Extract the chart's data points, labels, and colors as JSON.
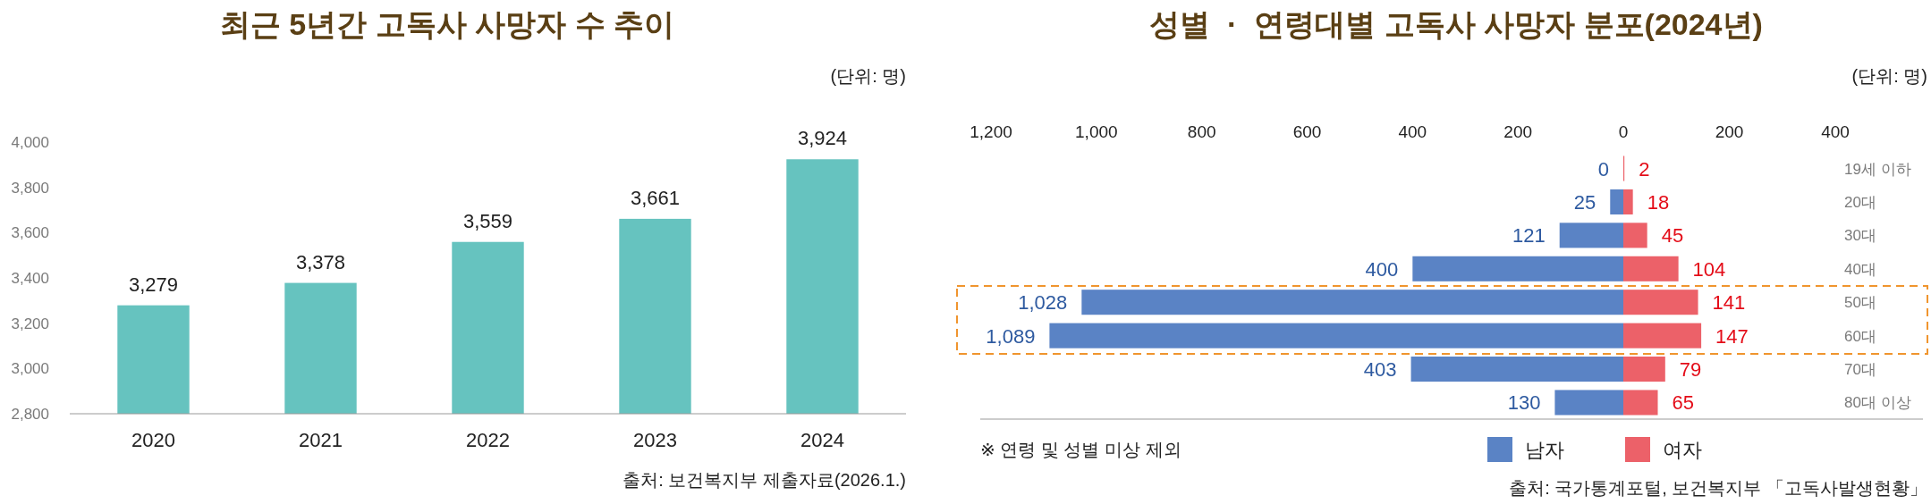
{
  "chart_data": [
    {
      "type": "bar",
      "title": "최근 5년간 고독사 사망자 수 추이",
      "categories": [
        "2020",
        "2021",
        "2022",
        "2023",
        "2024"
      ],
      "values": [
        3279,
        3378,
        3559,
        3661,
        3924
      ],
      "value_labels": [
        "3,279",
        "3,378",
        "3,559",
        "3,661",
        "3,924"
      ],
      "color": "#66c3bf",
      "ylim": [
        2800,
        4000
      ],
      "yticks": [
        {
          "value": 2800,
          "label": "2,800"
        },
        {
          "value": 3000,
          "label": "3,000"
        },
        {
          "value": 3200,
          "label": "3,200"
        },
        {
          "value": 3400,
          "label": "3,400"
        },
        {
          "value": 3600,
          "label": "3,600"
        },
        {
          "value": 3800,
          "label": "3,800"
        },
        {
          "value": 4000,
          "label": "4,000"
        }
      ],
      "annotations": [
        "(단위: 명)",
        "출처: 보건복지부 제출자료(2026.1.)"
      ]
    },
    {
      "type": "bar",
      "orientation": "horizontal",
      "title": "성별  ·  연령대별 고독사 사망자 분포(2024년)",
      "categories": [
        "19세 이하",
        "20대",
        "30대",
        "40대",
        "50대",
        "60대",
        "70대",
        "80대 이상"
      ],
      "series": [
        {
          "name": "남자",
          "color": "#5a83c5",
          "values": [
            0,
            25,
            121,
            400,
            1028,
            1089,
            403,
            130
          ],
          "value_labels": [
            "0",
            "25",
            "121",
            "400",
            "1,028",
            "1,089",
            "403",
            "130"
          ]
        }
      ],
      "xlim": [
        1200,
        0
      ],
      "xticks": [
        {
          "value": 1200,
          "label": "1,200"
        },
        {
          "value": 1000,
          "label": "1,000"
        },
        800,
        600,
        400,
        200,
        0
      ],
      "tick_labels": "x",
      "legend": "bottom",
      "annotations": [
        "※ 연령 및 성별 미상 제외"
      ]
    },
    {
      "type": "bar",
      "orientation": "horizontal",
      "categories": [
        "19세 이하",
        "20대",
        "30대",
        "40대",
        "50대",
        "60대",
        "70대",
        "80대 이상"
      ],
      "series": [
        {
          "name": "여자",
          "color": "#ec6169",
          "values": [
            2,
            18,
            45,
            104,
            141,
            147,
            79,
            65
          ],
          "value_labels": [
            "2",
            "18",
            "45",
            "104",
            "141",
            "147",
            "79",
            "65"
          ]
        }
      ],
      "xlim": [
        0,
        400
      ],
      "xticks": [
        200,
        400
      ],
      "legend": "bottom",
      "annotations": [
        "(단위: 명)",
        "출처: 국가통계포털, 보건복지부 「고독사발생현황」"
      ]
    }
  ]
}
